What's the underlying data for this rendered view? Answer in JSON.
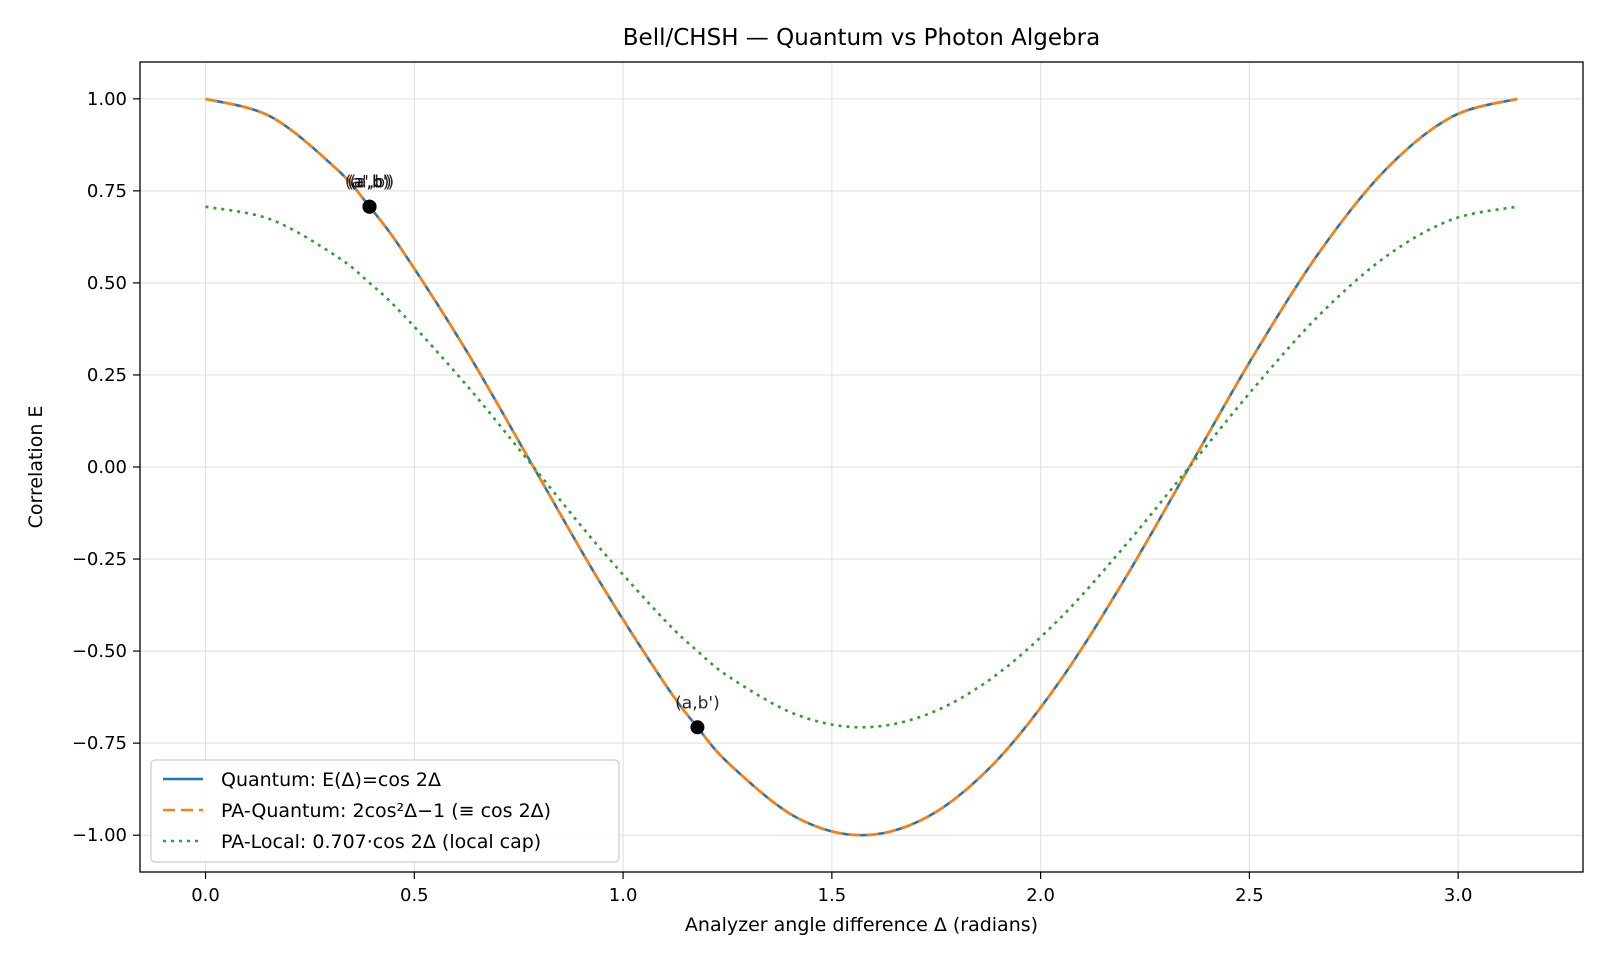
{
  "chart_data": {
    "type": "line",
    "title": "Bell/CHSH — Quantum vs Photon Algebra",
    "xlabel": "Analyzer angle difference Δ (radians)",
    "ylabel": "Correlation E",
    "xlim": [
      -0.157,
      3.299
    ],
    "ylim": [
      -1.1,
      1.1
    ],
    "x_ticks": [
      0.0,
      0.5,
      1.0,
      1.5,
      2.0,
      2.5,
      3.0
    ],
    "x_tick_labels": [
      "0.0",
      "0.5",
      "1.0",
      "1.5",
      "2.0",
      "2.5",
      "3.0"
    ],
    "y_ticks": [
      1.0,
      0.75,
      0.5,
      0.25,
      0.0,
      -0.25,
      -0.5,
      -0.75,
      -1.0
    ],
    "y_tick_labels": [
      "1.00",
      "0.75",
      "0.50",
      "0.25",
      "0.00",
      "−0.25",
      "−0.50",
      "−0.75",
      "−1.00"
    ],
    "grid": true,
    "legend_position": "bottom-left",
    "x": [
      0.0,
      0.1571,
      0.3142,
      0.3927,
      0.4712,
      0.6283,
      0.7854,
      0.9425,
      1.0996,
      1.1781,
      1.2566,
      1.4137,
      1.5708,
      1.7279,
      1.885,
      2.042,
      2.1991,
      2.3562,
      2.5133,
      2.6704,
      2.8274,
      2.9845,
      3.1416
    ],
    "series": [
      {
        "name": "Quantum: E(Δ)=cos 2Δ",
        "color": "#1f77b4",
        "style": "solid",
        "values": [
          1.0,
          0.951,
          0.809,
          0.707,
          0.588,
          0.309,
          0.0,
          -0.309,
          -0.588,
          -0.707,
          -0.809,
          -0.951,
          -1.0,
          -0.951,
          -0.809,
          -0.588,
          -0.309,
          0.0,
          0.309,
          0.588,
          0.809,
          0.951,
          1.0
        ]
      },
      {
        "name": "PA-Quantum: 2cos²Δ−1 (≡ cos 2Δ)",
        "color": "#ff7f0e",
        "style": "dashed",
        "values": [
          1.0,
          0.951,
          0.809,
          0.707,
          0.588,
          0.309,
          0.0,
          -0.309,
          -0.588,
          -0.707,
          -0.809,
          -0.951,
          -1.0,
          -0.951,
          -0.809,
          -0.588,
          -0.309,
          0.0,
          0.309,
          0.588,
          0.809,
          0.951,
          1.0
        ]
      },
      {
        "name": "PA-Local: 0.707·cos 2Δ (local cap)",
        "color": "#2ca02c",
        "style": "dotted",
        "values": [
          0.707,
          0.672,
          0.572,
          0.5,
          0.416,
          0.218,
          0.0,
          -0.218,
          -0.416,
          -0.5,
          -0.572,
          -0.672,
          -0.707,
          -0.672,
          -0.572,
          -0.416,
          -0.218,
          0.0,
          0.218,
          0.416,
          0.572,
          0.672,
          0.707
        ]
      }
    ],
    "points": [
      {
        "x": 0.3927,
        "y": 0.707,
        "label": "(a,b)"
      },
      {
        "x": 0.3927,
        "y": 0.707,
        "label": "(a',b)"
      },
      {
        "x": 0.3927,
        "y": 0.707,
        "label": "(a',b')"
      },
      {
        "x": 1.1781,
        "y": -0.707,
        "label": "(a,b')"
      }
    ]
  }
}
